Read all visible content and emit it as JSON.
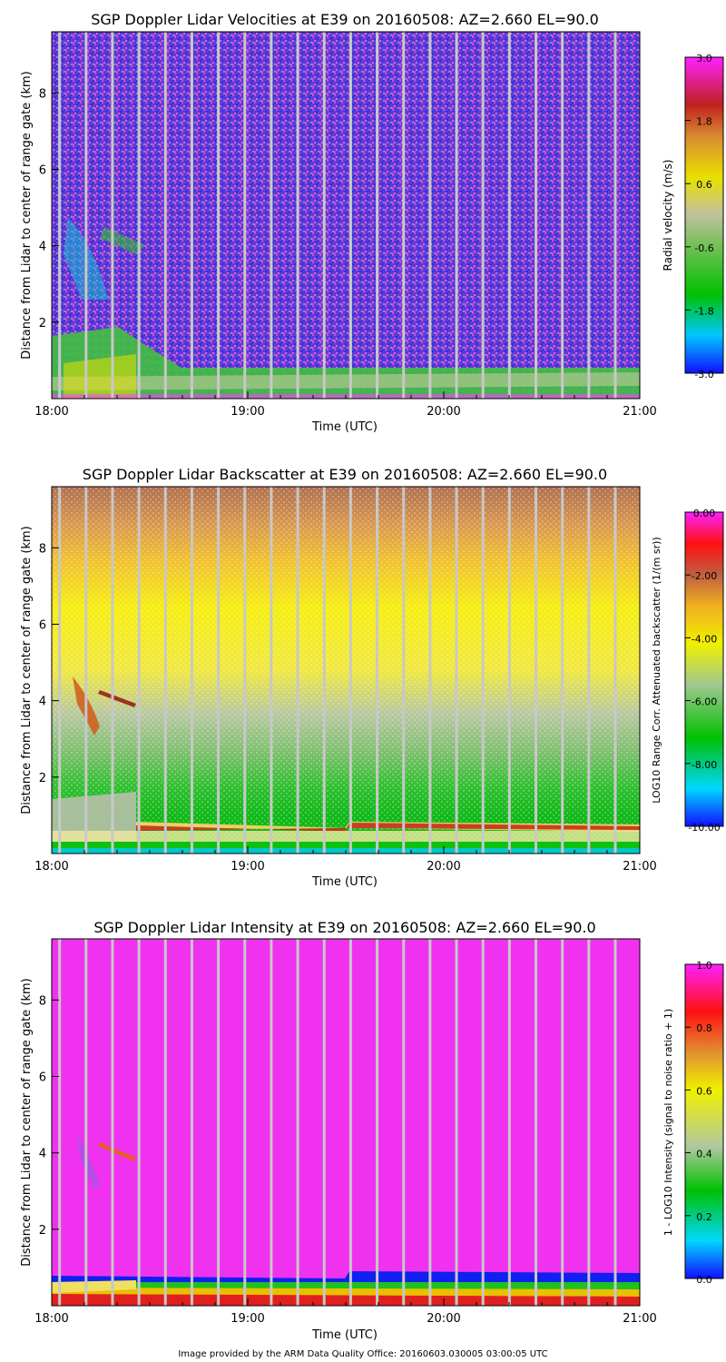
{
  "chart_data": [
    {
      "type": "heatmap",
      "title": "SGP Doppler Lidar Velocities at E39 on 20160508: AZ=2.660 EL=90.0",
      "xlabel": "Time (UTC)",
      "ylabel": "Distance from Lidar to center of range gate (km)",
      "x_ticks": [
        "18:00",
        "19:00",
        "20:00",
        "21:00"
      ],
      "y_ticks": [
        "2",
        "4",
        "6",
        "8"
      ],
      "xlim": [
        18.0,
        21.0
      ],
      "ylim": [
        0,
        9.6
      ],
      "colorbar": {
        "label": "Radial velocity (m/s)",
        "range": [
          -3.0,
          3.0
        ],
        "ticks": [
          "3.0",
          "1.8",
          "0.6",
          "-0.6",
          "-1.8",
          "-3.0"
        ]
      }
    },
    {
      "type": "heatmap",
      "title": "SGP Doppler Lidar Backscatter at E39 on 20160508: AZ=2.660 EL=90.0",
      "xlabel": "Time (UTC)",
      "ylabel": "Distance from Lidar to center of range gate (km)",
      "x_ticks": [
        "18:00",
        "19:00",
        "20:00",
        "21:00"
      ],
      "y_ticks": [
        "2",
        "4",
        "6",
        "8"
      ],
      "xlim": [
        18.0,
        21.0
      ],
      "ylim": [
        0,
        9.6
      ],
      "colorbar": {
        "label": "LOG10 Range Corr. Attenuated backscatter (1/(m sr))",
        "range": [
          -10.0,
          0.0
        ],
        "ticks": [
          "0.00",
          "-2.00",
          "-4.00",
          "-6.00",
          "-8.00",
          "-10.00"
        ]
      }
    },
    {
      "type": "heatmap",
      "title": "SGP Doppler Lidar Intensity at E39 on 20160508: AZ=2.660 EL=90.0",
      "xlabel": "Time (UTC)",
      "ylabel": "Distance from Lidar to center of range gate (km)",
      "x_ticks": [
        "18:00",
        "19:00",
        "20:00",
        "21:00"
      ],
      "y_ticks": [
        "2",
        "4",
        "6",
        "8"
      ],
      "xlim": [
        18.0,
        21.0
      ],
      "ylim": [
        0,
        9.6
      ],
      "colorbar": {
        "label": "1 - LOG10 Intensity (signal to noise ratio + 1)",
        "range": [
          0.0,
          1.0
        ],
        "ticks": [
          "1.0",
          "0.8",
          "0.6",
          "0.4",
          "0.2",
          "0.0"
        ]
      }
    }
  ],
  "footer": "Image provided by the ARM Data Quality Office: 20160603.030005 03:00:05 UTC"
}
